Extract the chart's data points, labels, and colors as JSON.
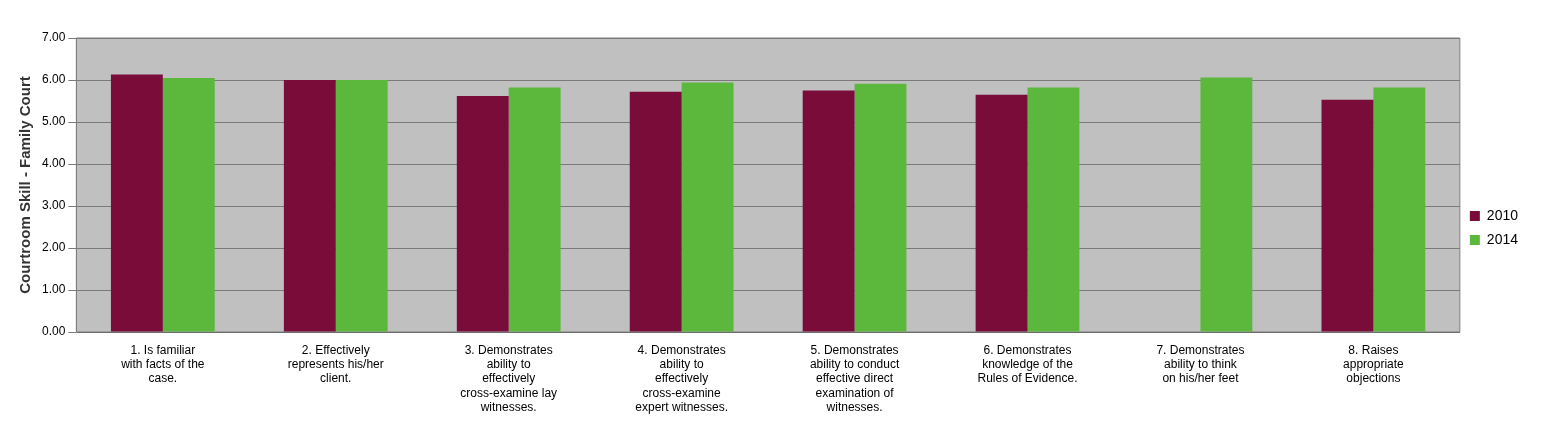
{
  "chart_data": {
    "type": "bar",
    "ylabel": "Courtroom Skill - Family Court",
    "categories": [
      "1. Is familiar with facts of the case.",
      "2. Effectively represents his/her client.",
      "3. Demonstrates ability to effectively cross-examine lay witnesses.",
      "4. Demonstrates ability to effectively cross-examine expert witnesses.",
      "5. Demonstrates ability to conduct effective direct examination of witnesses.",
      "6. Demonstrates knowledge of the Rules of Evidence.",
      "7. Demonstrates ability to think on his/her feet",
      "8. Raises appropriate objections"
    ],
    "series": [
      {
        "name": "2010",
        "color": "#7a0c3a",
        "values": [
          6.13,
          6.0,
          5.62,
          5.72,
          5.75,
          5.65,
          null,
          5.53
        ]
      },
      {
        "name": "2014",
        "color": "#5cb83c",
        "values": [
          6.05,
          6.0,
          5.82,
          5.94,
          5.91,
          5.82,
          6.06,
          5.82
        ]
      }
    ],
    "ylim": [
      0,
      7
    ],
    "yticks": [
      {
        "value": 0,
        "label": "0.00"
      },
      {
        "value": 1,
        "label": "1.00"
      },
      {
        "value": 2,
        "label": "2.00"
      },
      {
        "value": 3,
        "label": "3.00"
      },
      {
        "value": 4,
        "label": "4.00"
      },
      {
        "value": 5,
        "label": "5.00"
      },
      {
        "value": 6,
        "label": "6.00"
      },
      {
        "value": 7,
        "label": "7.00"
      }
    ],
    "grid": "y",
    "legend": "right"
  }
}
